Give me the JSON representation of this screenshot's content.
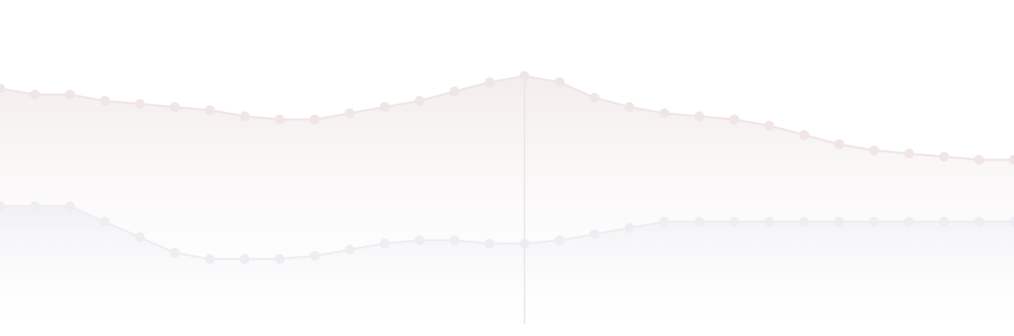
{
  "chart_data": {
    "type": "area",
    "title": "",
    "xlabel": "",
    "ylabel": "",
    "x": [
      0,
      1,
      2,
      3,
      4,
      5,
      6,
      7,
      8,
      9,
      10,
      11,
      12,
      13,
      14,
      15,
      16,
      17,
      18,
      19,
      20,
      21,
      22,
      23,
      24,
      25,
      26,
      27,
      28,
      29
    ],
    "xlim": [
      0,
      29
    ],
    "ylim": [
      0,
      100
    ],
    "grid": false,
    "legend": "none",
    "highlight_x": 15,
    "series": [
      {
        "values": [
          76,
          74,
          74,
          72,
          71,
          70,
          69,
          67,
          66,
          66,
          68,
          70,
          72,
          75,
          78,
          80,
          78,
          73,
          70,
          68,
          67,
          66,
          64,
          61,
          58,
          56,
          55,
          54,
          53,
          53
        ],
        "color": "#f0e6e6"
      },
      {
        "values": [
          38,
          38,
          38,
          33,
          28,
          23,
          21,
          21,
          21,
          22,
          24,
          26,
          27,
          27,
          26,
          26,
          27,
          29,
          31,
          33,
          33,
          33,
          33,
          33,
          33,
          33,
          33,
          33,
          33,
          33
        ],
        "color": "#eeeef2"
      }
    ]
  }
}
